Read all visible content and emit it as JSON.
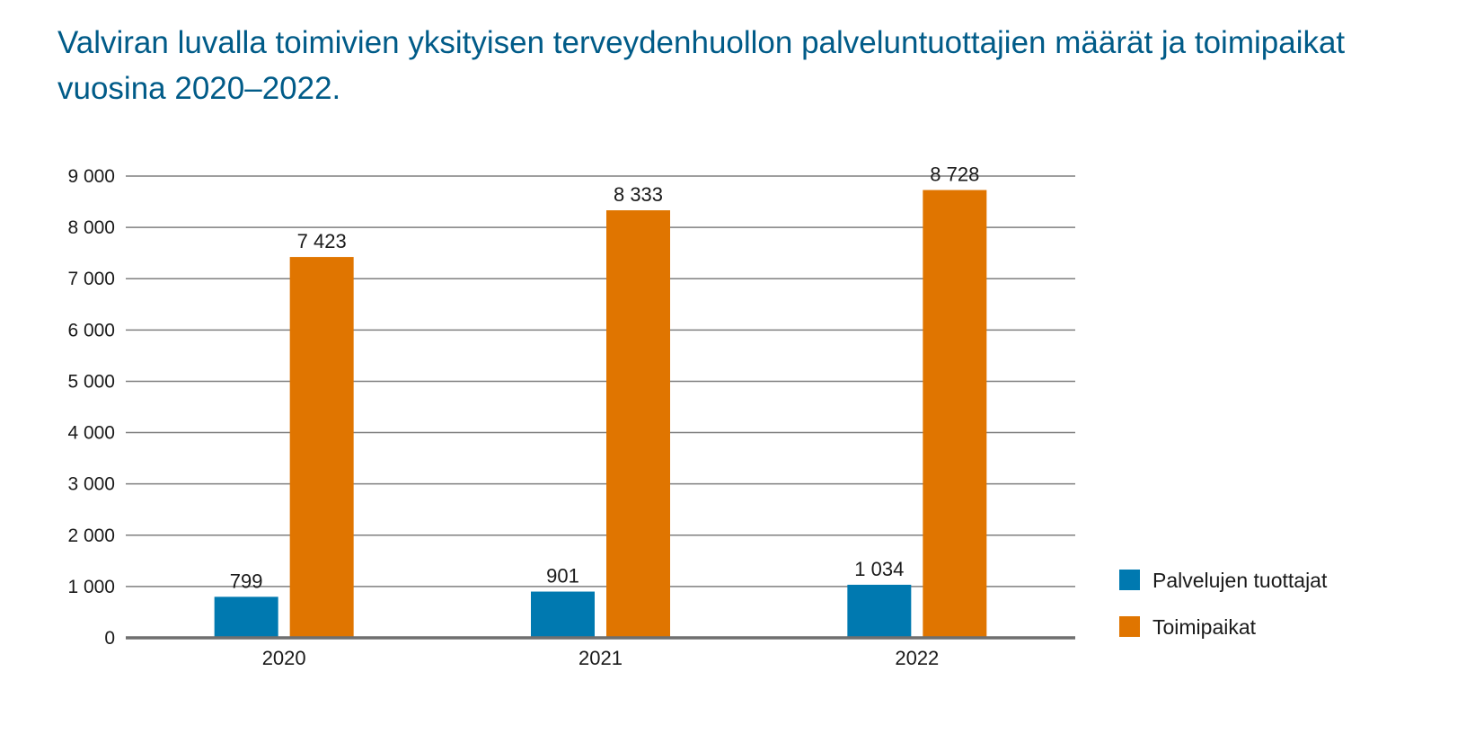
{
  "title": "Valviran luvalla toimivien yksityisen terveydenhuollon palveluntuottajien määrät ja toimipaikat vuosina 2020–2022.",
  "chart_data": {
    "type": "bar",
    "categories": [
      "2020",
      "2021",
      "2022"
    ],
    "series": [
      {
        "name": "Palvelujen tuottajat",
        "values": [
          799,
          901,
          1034
        ],
        "labels": [
          "799",
          "901",
          "1 034"
        ],
        "color": "#0079b0"
      },
      {
        "name": "Toimipaikat",
        "values": [
          7423,
          8333,
          8728
        ],
        "labels": [
          "7 423",
          "8 333",
          "8 728"
        ],
        "color": "#e07500"
      }
    ],
    "ylim": [
      0,
      9000
    ],
    "yticks": [
      0,
      1000,
      2000,
      3000,
      4000,
      5000,
      6000,
      7000,
      8000,
      9000
    ],
    "ytick_labels": [
      "0",
      "1 000",
      "2 000",
      "3 000",
      "4 000",
      "5 000",
      "6 000",
      "7 000",
      "8 000",
      "9 000"
    ],
    "xlabel": "",
    "ylabel": "",
    "grid": true,
    "legend": "right",
    "colors": {
      "title": "#005b88",
      "gridline": "#7f7f7f",
      "axis": "#6f6f6f"
    }
  }
}
